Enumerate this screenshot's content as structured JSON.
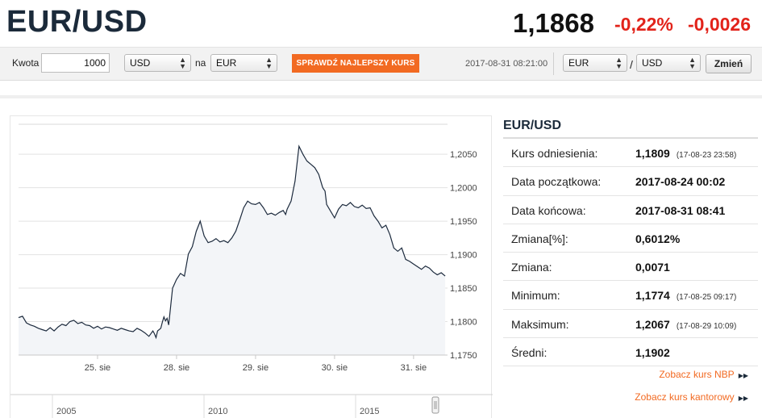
{
  "header": {
    "pair": "EUR/USD",
    "rate": "1,1868",
    "change_pct": "-0,22%",
    "change_abs": "-0,0026",
    "change_color": "#e2231a"
  },
  "toolbar": {
    "amount_label": "Kwota",
    "amount_value": "1000",
    "from_currency": "USD",
    "to_label": "na",
    "to_currency": "EUR",
    "best_rate_button": "SPRAWDŹ NAJLEPSZY KURS",
    "timestamp": "2017-08-31 08:21:00",
    "pair_base": "EUR",
    "pair_sep": "/",
    "pair_quote": "USD",
    "change_button": "Zmień",
    "accent_color": "#f26a22"
  },
  "panel": {
    "title": "EUR/USD",
    "rows": [
      {
        "label": "Kurs odniesienia:",
        "value": "1,1809",
        "note": "(17-08-23 23:58)"
      },
      {
        "label": "Data początkowa:",
        "value": "2017-08-24 00:02",
        "note": ""
      },
      {
        "label": "Data końcowa:",
        "value": "2017-08-31 08:41",
        "note": ""
      },
      {
        "label": "Zmiana[%]:",
        "value": "0,6012%",
        "note": ""
      },
      {
        "label": "Zmiana:",
        "value": "0,0071",
        "note": ""
      },
      {
        "label": "Minimum:",
        "value": "1,1774",
        "note": "(17-08-25 09:17)"
      },
      {
        "label": "Maksimum:",
        "value": "1,2067",
        "note": "(17-08-29 10:09)"
      },
      {
        "label": "Średni:",
        "value": "1,1902",
        "note": ""
      }
    ],
    "link_nbp": "Zobacz kurs NBP",
    "link_kantor": "Zobacz kurs kantorowy",
    "link_icon": "double-triangle-right-icon"
  },
  "chart_data": {
    "type": "area",
    "line_color": "#1c2a3d",
    "fill_color": "#f3f5f8",
    "ylim": [
      1.175,
      1.209
    ],
    "y_ticks": [
      "1,2050",
      "1,2000",
      "1,1950",
      "1,1900",
      "1,1850",
      "1,1800",
      "1,1750"
    ],
    "y_tick_values": [
      1.205,
      1.2,
      1.195,
      1.19,
      1.185,
      1.18,
      1.175
    ],
    "x_ticks": [
      "25. sie",
      "28. sie",
      "29. sie",
      "30. sie",
      "31. sie"
    ],
    "x_tick_index": [
      1.0,
      2.0,
      3.0,
      4.0,
      5.0
    ],
    "xlim": [
      0.0,
      5.43
    ],
    "x": [
      0.0,
      0.05,
      0.1,
      0.15,
      0.2,
      0.25,
      0.3,
      0.35,
      0.4,
      0.45,
      0.5,
      0.55,
      0.6,
      0.65,
      0.7,
      0.75,
      0.8,
      0.85,
      0.9,
      0.95,
      1.0,
      1.05,
      1.1,
      1.15,
      1.2,
      1.25,
      1.3,
      1.35,
      1.4,
      1.45,
      1.5,
      1.55,
      1.6,
      1.65,
      1.7,
      1.72,
      1.74,
      1.76,
      1.8,
      1.82,
      1.84,
      1.86,
      1.88,
      1.9,
      1.95,
      2.0,
      2.05,
      2.1,
      2.15,
      2.2,
      2.25,
      2.3,
      2.35,
      2.4,
      2.45,
      2.5,
      2.55,
      2.6,
      2.65,
      2.7,
      2.75,
      2.8,
      2.85,
      2.9,
      2.95,
      3.0,
      3.05,
      3.1,
      3.15,
      3.2,
      3.25,
      3.3,
      3.35,
      3.38,
      3.4,
      3.45,
      3.5,
      3.55,
      3.6,
      3.65,
      3.7,
      3.75,
      3.8,
      3.85,
      3.88,
      3.9,
      3.95,
      4.0,
      4.05,
      4.1,
      4.15,
      4.2,
      4.25,
      4.3,
      4.35,
      4.4,
      4.45,
      4.5,
      4.55,
      4.6,
      4.65,
      4.7,
      4.75,
      4.8,
      4.85,
      4.9,
      4.95,
      5.0,
      5.05,
      5.1,
      5.15,
      5.2,
      5.25,
      5.3,
      5.35,
      5.4
    ],
    "y": [
      1.1806,
      1.1808,
      1.1798,
      1.1795,
      1.1793,
      1.179,
      1.1788,
      1.1786,
      1.1791,
      1.1786,
      1.1792,
      1.1796,
      1.1794,
      1.18,
      1.1802,
      1.1797,
      1.1799,
      1.1795,
      1.1794,
      1.179,
      1.1793,
      1.1789,
      1.1792,
      1.1791,
      1.1789,
      1.1787,
      1.179,
      1.1788,
      1.1786,
      1.1785,
      1.179,
      1.1787,
      1.1783,
      1.1778,
      1.1786,
      1.1782,
      1.1776,
      1.1786,
      1.179,
      1.1799,
      1.1807,
      1.1801,
      1.1805,
      1.1795,
      1.185,
      1.1863,
      1.1872,
      1.1868,
      1.1901,
      1.1912,
      1.1935,
      1.195,
      1.1928,
      1.1918,
      1.192,
      1.1924,
      1.1919,
      1.1921,
      1.1918,
      1.1925,
      1.1935,
      1.1952,
      1.197,
      1.198,
      1.1976,
      1.1975,
      1.1978,
      1.197,
      1.196,
      1.1962,
      1.1959,
      1.1963,
      1.1966,
      1.196,
      1.1968,
      1.198,
      1.201,
      1.2062,
      1.205,
      1.204,
      1.2035,
      1.203,
      1.202,
      1.2,
      1.1995,
      1.1975,
      1.1965,
      1.1955,
      1.1968,
      1.1975,
      1.1973,
      1.1978,
      1.1972,
      1.197,
      1.1974,
      1.1969,
      1.197,
      1.1958,
      1.195,
      1.194,
      1.1944,
      1.193,
      1.191,
      1.1905,
      1.191,
      1.1893,
      1.189,
      1.1886,
      1.1882,
      1.1878,
      1.1883,
      1.188,
      1.1874,
      1.187,
      1.1873,
      1.1868
    ]
  },
  "navigator": {
    "labels": [
      "2005",
      "2010",
      "2015"
    ],
    "label_index": [
      0,
      1,
      2
    ]
  }
}
